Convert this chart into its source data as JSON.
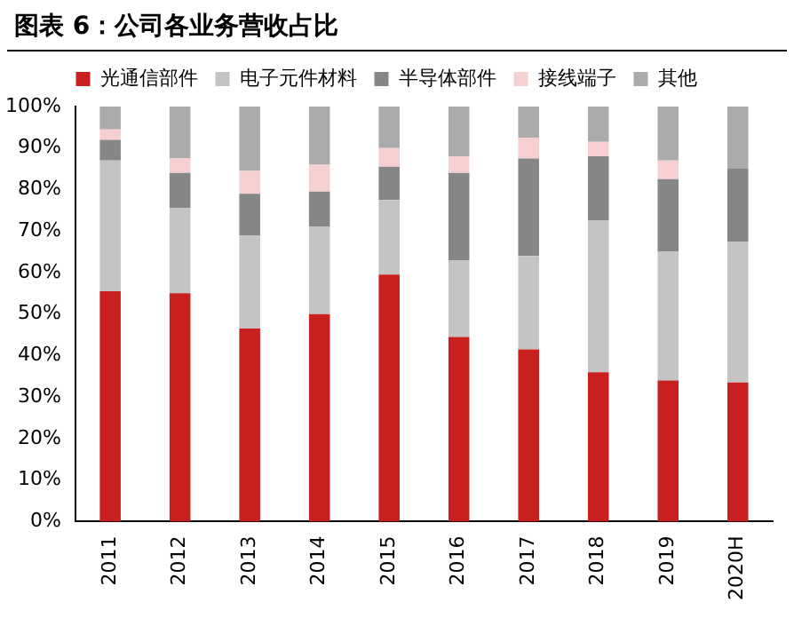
{
  "chart_data": {
    "type": "bar",
    "stacked": true,
    "title": "图表 6：公司各业务营收占比",
    "categories": [
      "2011",
      "2012",
      "2013",
      "2014",
      "2015",
      "2016",
      "2017",
      "2018",
      "2019",
      "2020H"
    ],
    "series": [
      {
        "name": "光通信部件",
        "color": "#c8201f",
        "values": [
          55.5,
          55,
          46.5,
          50,
          59.5,
          44.5,
          41.5,
          36,
          34,
          33.5
        ]
      },
      {
        "name": "电子元件材料",
        "color": "#c4c4c4",
        "values": [
          31.5,
          20.5,
          22.5,
          21,
          18,
          18.5,
          22.5,
          36.5,
          31,
          34
        ]
      },
      {
        "name": "半导体部件",
        "color": "#868686",
        "values": [
          5,
          8.5,
          10,
          8.5,
          8,
          21,
          23.5,
          15.5,
          17.5,
          17.5
        ]
      },
      {
        "name": "接线端子",
        "color": "#f6cfd0",
        "values": [
          2.5,
          3.5,
          5.5,
          6.5,
          4.5,
          4,
          5,
          3.5,
          4.5,
          0
        ]
      },
      {
        "name": "其他",
        "color": "#ababab",
        "values": [
          5.5,
          12.5,
          15.5,
          14,
          10,
          12,
          7.5,
          8.5,
          13,
          15
        ]
      }
    ],
    "ylim": [
      0,
      100
    ],
    "yticks": [
      {
        "value": 0,
        "label": "0%"
      },
      {
        "value": 10,
        "label": "10%"
      },
      {
        "value": 20,
        "label": "20%"
      },
      {
        "value": 30,
        "label": "30%"
      },
      {
        "value": 40,
        "label": "40%"
      },
      {
        "value": 50,
        "label": "50%"
      },
      {
        "value": 60,
        "label": "60%"
      },
      {
        "value": 70,
        "label": "70%"
      },
      {
        "value": 80,
        "label": "80%"
      },
      {
        "value": 90,
        "label": "90%"
      },
      {
        "value": 100,
        "label": "100%"
      }
    ],
    "grid": false,
    "legend": "top"
  }
}
